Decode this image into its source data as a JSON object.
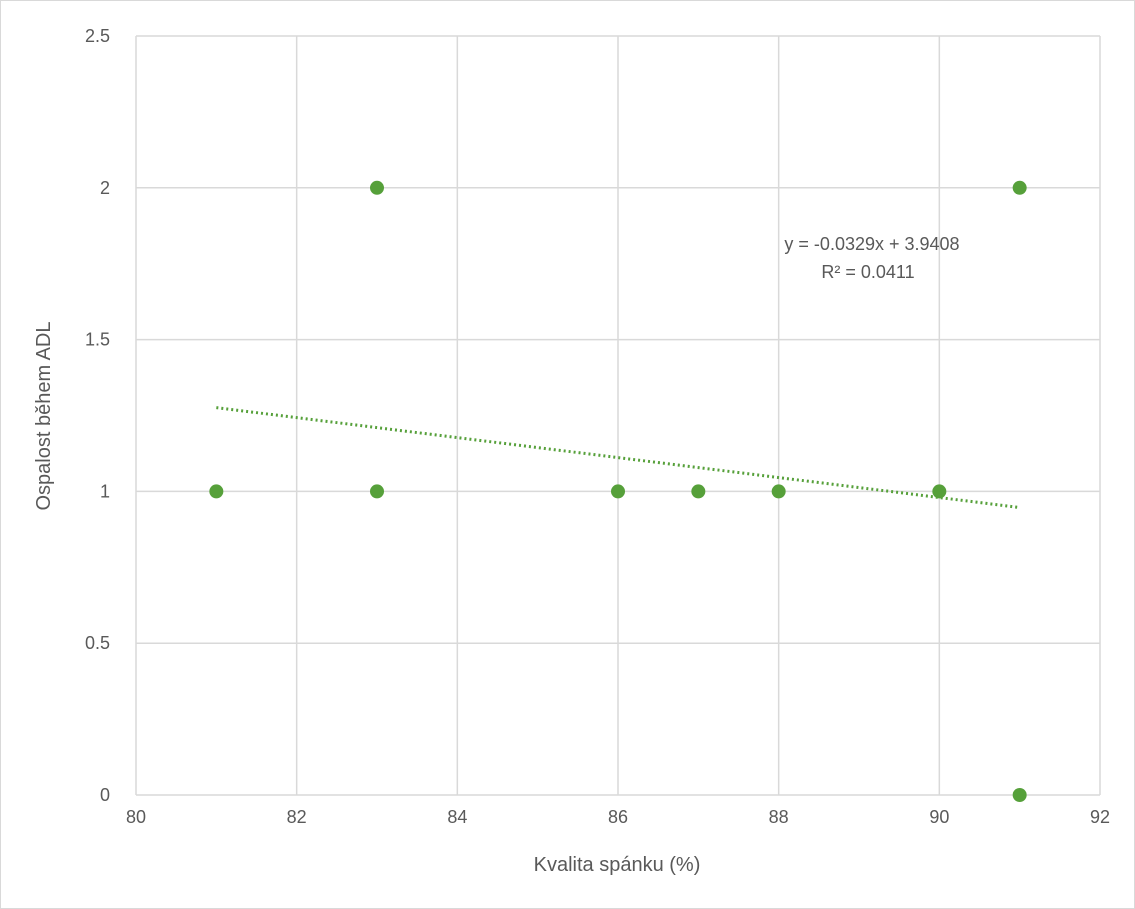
{
  "chart_data": {
    "type": "scatter",
    "title": "",
    "xlabel": "Kvalita spánku (%)",
    "ylabel": "Ospalost během ADL",
    "xlim": [
      80,
      92
    ],
    "ylim": [
      0,
      2.5
    ],
    "x_ticks": [
      "80",
      "82",
      "84",
      "86",
      "88",
      "90",
      "92"
    ],
    "y_ticks": [
      "0",
      "0.5",
      "1",
      "1.5",
      "2",
      "2.5"
    ],
    "grid": true,
    "legend": "none",
    "series": [
      {
        "color": "#56a03a",
        "points": [
          {
            "x": 81,
            "y": 1
          },
          {
            "x": 83,
            "y": 2
          },
          {
            "x": 83,
            "y": 1
          },
          {
            "x": 86,
            "y": 1
          },
          {
            "x": 87,
            "y": 1
          },
          {
            "x": 88,
            "y": 1
          },
          {
            "x": 90,
            "y": 1
          },
          {
            "x": 91,
            "y": 2
          },
          {
            "x": 91,
            "y": 0
          }
        ]
      }
    ],
    "trendline": {
      "type": "linear",
      "slope": -0.0329,
      "intercept": 3.9408,
      "x_range": [
        81,
        91
      ],
      "style": "dotted",
      "color": "#56a03a",
      "equation_label": "y = -0.0329x + 3.9408",
      "r2_label": "R² = 0.0411"
    },
    "colors": {
      "gridline": "#d9d9d9",
      "text": "#595959"
    }
  }
}
